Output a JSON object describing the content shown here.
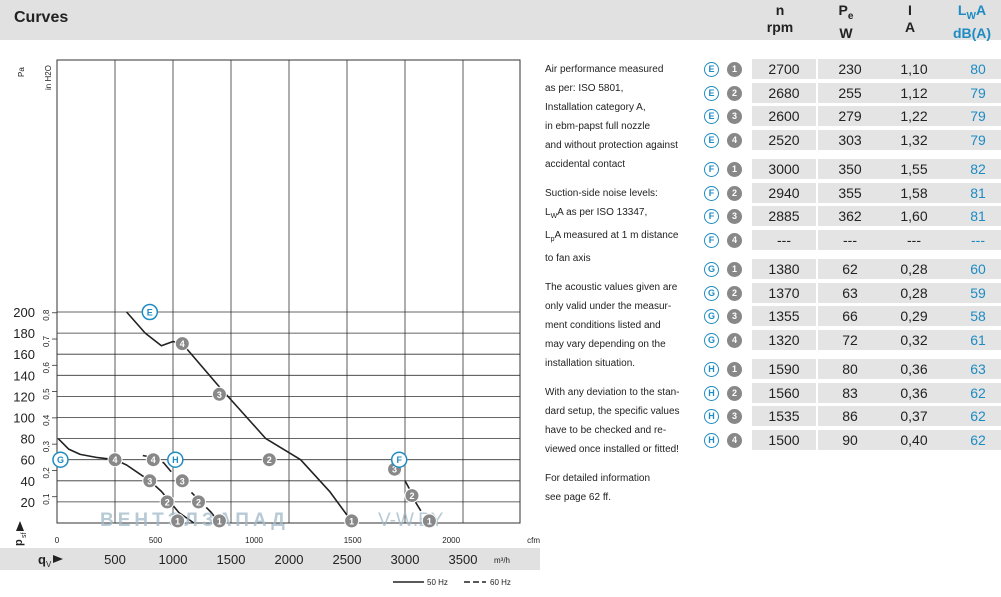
{
  "header": {
    "title": "Curves",
    "columns": [
      {
        "line1": "n",
        "line2": "rpm"
      },
      {
        "line1": "P",
        "sub": "e",
        "line2": "W"
      },
      {
        "line1": "I",
        "line2": "A"
      },
      {
        "line1": "L",
        "sub": "W",
        "line1b": "A",
        "line2": "dB(A)"
      }
    ]
  },
  "notes": {
    "p1": [
      "Air performance measured",
      "as per: ISO 5801,",
      "Installation category A,",
      "in ebm-papst full nozzle",
      "and without protection against",
      "accidental contact"
    ],
    "p2_l1": "Suction-side noise levels:",
    "p2_l2a": "L",
    "p2_l2sub": "W",
    "p2_l2b": "A as per ISO 13347,",
    "p2_l3a": "L",
    "p2_l3sub": "p",
    "p2_l3b": "A measured at 1 m distance",
    "p2_l4": "to fan axis",
    "p3": [
      "The acoustic values given are",
      "only valid under the measur-",
      "ment conditions listed and",
      "may vary depending on the",
      "installation situation."
    ],
    "p4": [
      "With any deviation to the stan-",
      "dard setup, the specific values",
      "have to be checked and re-",
      "viewed once installed or fitted!"
    ],
    "p5": [
      "For detailed information",
      "see page 62 ff."
    ]
  },
  "table": {
    "groups": [
      {
        "curve": "E",
        "rows": [
          {
            "point": "1",
            "n": "2700",
            "pe": "230",
            "i": "1,10",
            "lwa": "80"
          },
          {
            "point": "2",
            "n": "2680",
            "pe": "255",
            "i": "1,12",
            "lwa": "79"
          },
          {
            "point": "3",
            "n": "2600",
            "pe": "279",
            "i": "1,22",
            "lwa": "79"
          },
          {
            "point": "4",
            "n": "2520",
            "pe": "303",
            "i": "1,32",
            "lwa": "79"
          }
        ]
      },
      {
        "curve": "F",
        "rows": [
          {
            "point": "1",
            "n": "3000",
            "pe": "350",
            "i": "1,55",
            "lwa": "82"
          },
          {
            "point": "2",
            "n": "2940",
            "pe": "355",
            "i": "1,58",
            "lwa": "81"
          },
          {
            "point": "3",
            "n": "2885",
            "pe": "362",
            "i": "1,60",
            "lwa": "81"
          },
          {
            "point": "4",
            "n": "---",
            "pe": "---",
            "i": "---",
            "lwa": "---"
          }
        ]
      },
      {
        "curve": "G",
        "rows": [
          {
            "point": "1",
            "n": "1380",
            "pe": "62",
            "i": "0,28",
            "lwa": "60"
          },
          {
            "point": "2",
            "n": "1370",
            "pe": "63",
            "i": "0,28",
            "lwa": "59"
          },
          {
            "point": "3",
            "n": "1355",
            "pe": "66",
            "i": "0,29",
            "lwa": "58"
          },
          {
            "point": "4",
            "n": "1320",
            "pe": "72",
            "i": "0,32",
            "lwa": "61"
          }
        ]
      },
      {
        "curve": "H",
        "rows": [
          {
            "point": "1",
            "n": "1590",
            "pe": "80",
            "i": "0,36",
            "lwa": "63"
          },
          {
            "point": "2",
            "n": "1560",
            "pe": "83",
            "i": "0,36",
            "lwa": "62"
          },
          {
            "point": "3",
            "n": "1535",
            "pe": "86",
            "i": "0,37",
            "lwa": "62"
          },
          {
            "point": "4",
            "n": "1500",
            "pe": "90",
            "i": "0,40",
            "lwa": "62"
          }
        ]
      }
    ]
  },
  "watermark": {
    "left": "ВЕНТЭЛЗАПАД",
    "right": "V-W.BY"
  },
  "colors": {
    "accent": "#1e8bc3",
    "point_fill": "#888888",
    "header_bg": "#e1e1e1",
    "cell_bg": "#e4e4e4"
  },
  "chart_data": {
    "type": "line",
    "title": "",
    "y_axis": {
      "unit": "Pa",
      "label": "p",
      "label_sub": "sf",
      "ticks": [
        20,
        40,
        60,
        80,
        100,
        120,
        140,
        160,
        180,
        200
      ],
      "ylim": [
        0,
        200
      ]
    },
    "y2_axis": {
      "unit": "in H2O",
      "ticks": [
        "0,1",
        "0,2",
        "0,3",
        "0,4",
        "0,5",
        "0,6",
        "0,7",
        "0,8"
      ]
    },
    "x_axis": {
      "label": "q",
      "label_sub": "V",
      "unit": "m³/h",
      "ticks": [
        500,
        1000,
        1500,
        2000,
        2500,
        3000,
        3500
      ],
      "xlim": [
        0,
        3500
      ]
    },
    "x2_axis": {
      "unit": "cfm",
      "ticks": [
        0,
        500,
        1000,
        1500,
        2000
      ]
    },
    "grid": true,
    "legend": [
      {
        "name": "50 Hz",
        "style": "solid"
      },
      {
        "name": "60 Hz",
        "style": "dashed"
      }
    ],
    "legend_position": "bottom-right",
    "series": [
      {
        "name": "E",
        "style": "solid",
        "points": [
          [
            600,
            200
          ],
          [
            760,
            180
          ],
          [
            900,
            168
          ],
          [
            1000,
            172
          ],
          [
            1080,
            170
          ],
          [
            1400,
            129
          ],
          [
            1800,
            80
          ],
          [
            2100,
            60
          ],
          [
            2350,
            30
          ],
          [
            2550,
            0
          ]
        ]
      },
      {
        "name": "F",
        "style": "dashed",
        "points": [
          [
            2880,
            55
          ],
          [
            2920,
            50
          ],
          [
            3000,
            40
          ],
          [
            3050,
            30
          ],
          [
            3090,
            20
          ],
          [
            3200,
            0
          ]
        ]
      },
      {
        "name": "G",
        "style": "solid",
        "points": [
          [
            10,
            80
          ],
          [
            100,
            70
          ],
          [
            200,
            65
          ],
          [
            350,
            62
          ],
          [
            500,
            60
          ],
          [
            600,
            55
          ],
          [
            800,
            40
          ],
          [
            900,
            30
          ],
          [
            1050,
            10
          ],
          [
            1180,
            0
          ]
        ]
      },
      {
        "name": "H",
        "style": "dashed",
        "points": [
          [
            740,
            64
          ],
          [
            830,
            62
          ],
          [
            920,
            57
          ],
          [
            1050,
            40
          ],
          [
            1150,
            30
          ],
          [
            1330,
            10
          ],
          [
            1400,
            0
          ]
        ]
      }
    ],
    "operating_points": [
      {
        "curve": "E",
        "point": "4",
        "x": 1080,
        "y": 170
      },
      {
        "curve": "E",
        "point": "3",
        "x": 1400,
        "y": 122
      },
      {
        "curve": "E",
        "point": "2",
        "x": 1830,
        "y": 60
      },
      {
        "curve": "E",
        "point": "1",
        "x": 2540,
        "y": 2
      },
      {
        "curve": "F",
        "point": "3",
        "x": 2910,
        "y": 51
      },
      {
        "curve": "F",
        "point": "2",
        "x": 3060,
        "y": 26
      },
      {
        "curve": "F",
        "point": "1",
        "x": 3210,
        "y": 2
      },
      {
        "curve": "G",
        "point": "4",
        "x": 500,
        "y": 60
      },
      {
        "curve": "G",
        "point": "3",
        "x": 800,
        "y": 40
      },
      {
        "curve": "G",
        "point": "2",
        "x": 950,
        "y": 20
      },
      {
        "curve": "G",
        "point": "1",
        "x": 1040,
        "y": 2
      },
      {
        "curve": "H",
        "point": "4",
        "x": 830,
        "y": 60
      },
      {
        "curve": "H",
        "point": "3",
        "x": 1080,
        "y": 40
      },
      {
        "curve": "H",
        "point": "2",
        "x": 1220,
        "y": 20
      },
      {
        "curve": "H",
        "point": "1",
        "x": 1400,
        "y": 2
      }
    ],
    "curve_labels": [
      {
        "name": "E",
        "x": 800,
        "y": 200
      },
      {
        "name": "F",
        "x": 2950,
        "y": 60
      },
      {
        "name": "G",
        "x": 30,
        "y": 60
      },
      {
        "name": "H",
        "x": 1020,
        "y": 60
      }
    ]
  }
}
